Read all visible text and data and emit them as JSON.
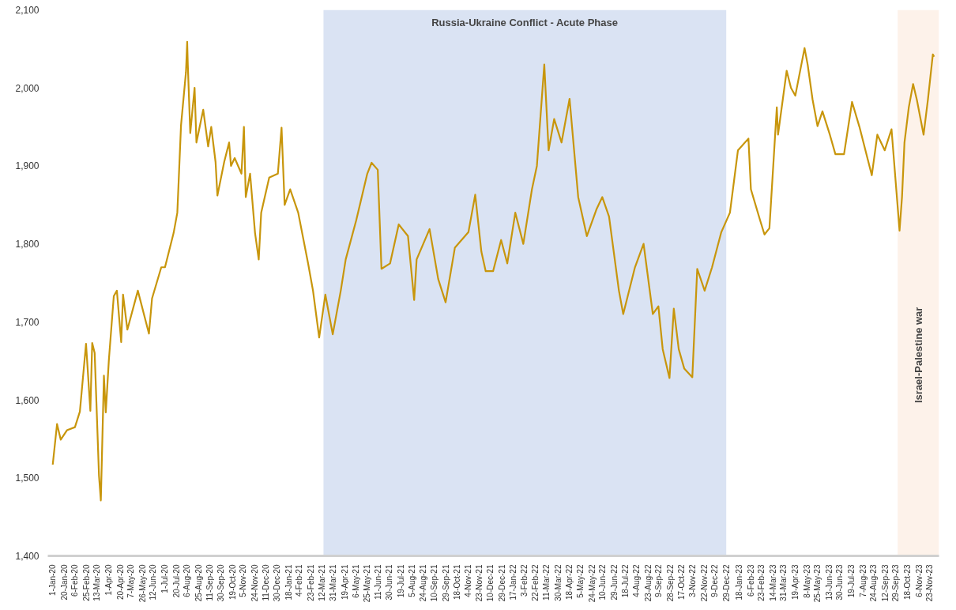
{
  "chart_data": {
    "type": "line",
    "x": [
      "2020-01-01",
      "2020-01-08",
      "2020-01-14",
      "2020-01-24",
      "2020-02-06",
      "2020-02-14",
      "2020-02-24",
      "2020-03-02",
      "2020-03-05",
      "2020-03-09",
      "2020-03-16",
      "2020-03-19",
      "2020-03-24",
      "2020-03-27",
      "2020-04-01",
      "2020-04-09",
      "2020-04-14",
      "2020-04-21",
      "2020-04-24",
      "2020-05-01",
      "2020-05-18",
      "2020-06-05",
      "2020-06-10",
      "2020-06-25",
      "2020-07-01",
      "2020-07-15",
      "2020-07-21",
      "2020-07-27",
      "2020-08-04",
      "2020-08-06",
      "2020-08-07",
      "2020-08-11",
      "2020-08-18",
      "2020-08-21",
      "2020-09-01",
      "2020-09-09",
      "2020-09-14",
      "2020-09-21",
      "2020-09-24",
      "2020-10-05",
      "2020-10-13",
      "2020-10-16",
      "2020-10-22",
      "2020-11-02",
      "2020-11-06",
      "2020-11-09",
      "2020-11-16",
      "2020-11-24",
      "2020-11-30",
      "2020-12-04",
      "2020-12-17",
      "2020-12-31",
      "2021-01-06",
      "2021-01-11",
      "2021-01-20",
      "2021-02-02",
      "2021-02-18",
      "2021-02-26",
      "2021-03-08",
      "2021-03-18",
      "2021-03-30",
      "2021-04-12",
      "2021-04-20",
      "2021-05-07",
      "2021-05-25",
      "2021-06-01",
      "2021-06-11",
      "2021-06-17",
      "2021-07-01",
      "2021-07-15",
      "2021-07-30",
      "2021-08-09",
      "2021-08-13",
      "2021-09-03",
      "2021-09-17",
      "2021-09-29",
      "2021-10-14",
      "2021-11-05",
      "2021-11-16",
      "2021-11-26",
      "2021-12-03",
      "2021-12-15",
      "2021-12-28",
      "2022-01-07",
      "2022-01-20",
      "2022-02-02",
      "2022-02-16",
      "2022-02-24",
      "2022-03-08",
      "2022-03-15",
      "2022-03-24",
      "2022-04-05",
      "2022-04-18",
      "2022-05-02",
      "2022-05-16",
      "2022-06-01",
      "2022-06-10",
      "2022-06-21",
      "2022-07-07",
      "2022-07-14",
      "2022-08-02",
      "2022-08-16",
      "2022-08-31",
      "2022-09-09",
      "2022-09-16",
      "2022-09-27",
      "2022-10-04",
      "2022-10-12",
      "2022-10-21",
      "2022-11-03",
      "2022-11-11",
      "2022-11-23",
      "2022-12-05",
      "2022-12-20",
      "2023-01-03",
      "2023-01-16",
      "2023-02-02",
      "2023-02-06",
      "2023-02-21",
      "2023-02-28",
      "2023-03-08",
      "2023-03-15",
      "2023-03-20",
      "2023-03-22",
      "2023-04-05",
      "2023-04-12",
      "2023-04-19",
      "2023-05-04",
      "2023-05-09",
      "2023-05-17",
      "2023-05-25",
      "2023-06-02",
      "2023-06-14",
      "2023-06-23",
      "2023-07-07",
      "2023-07-20",
      "2023-08-01",
      "2023-08-21",
      "2023-08-30",
      "2023-09-11",
      "2023-09-22",
      "2023-10-05",
      "2023-10-09",
      "2023-10-13",
      "2023-10-20",
      "2023-10-27",
      "2023-11-02",
      "2023-11-13",
      "2023-11-20",
      "2023-11-28",
      "2023-11-30"
    ],
    "series": [
      {
        "color": "#c8960c",
        "values": [
          1517,
          1569,
          1549,
          1561,
          1565,
          1585,
          1672,
          1586,
          1673,
          1660,
          1503,
          1471,
          1631,
          1584,
          1651,
          1733,
          1740,
          1674,
          1735,
          1690,
          1740,
          1685,
          1730,
          1770,
          1770,
          1814,
          1840,
          1952,
          2020,
          2059,
          2030,
          1942,
          2000,
          1930,
          1972,
          1925,
          1950,
          1905,
          1862,
          1905,
          1930,
          1900,
          1910,
          1890,
          1950,
          1860,
          1890,
          1814,
          1780,
          1840,
          1885,
          1890,
          1949,
          1850,
          1870,
          1840,
          1775,
          1740,
          1680,
          1735,
          1684,
          1740,
          1780,
          1830,
          1890,
          1904,
          1895,
          1768,
          1775,
          1825,
          1810,
          1728,
          1780,
          1819,
          1755,
          1725,
          1795,
          1815,
          1863,
          1790,
          1765,
          1765,
          1805,
          1775,
          1840,
          1800,
          1870,
          1900,
          2030,
          1920,
          1960,
          1930,
          1986,
          1860,
          1810,
          1845,
          1860,
          1835,
          1740,
          1710,
          1770,
          1800,
          1710,
          1720,
          1665,
          1628,
          1717,
          1665,
          1640,
          1629,
          1768,
          1740,
          1770,
          1815,
          1840,
          1920,
          1935,
          1870,
          1830,
          1812,
          1820,
          1910,
          1975,
          1940,
          2022,
          2000,
          1990,
          2051,
          2030,
          1985,
          1951,
          1970,
          1940,
          1915,
          1915,
          1982,
          1950,
          1888,
          1940,
          1920,
          1947,
          1817,
          1860,
          1930,
          1975,
          2005,
          1985,
          1940,
          1985,
          2043,
          2040
        ]
      }
    ],
    "xlim": [
      "2019-12-24",
      "2023-12-08"
    ],
    "ylim": [
      1400,
      2100
    ],
    "yticks": [
      {
        "value": 1400,
        "label": "1,400"
      },
      {
        "value": 1500,
        "label": "1,500"
      },
      {
        "value": 1600,
        "label": "1,600"
      },
      {
        "value": 1700,
        "label": "1,700"
      },
      {
        "value": 1800,
        "label": "1,800"
      },
      {
        "value": 1900,
        "label": "1,900"
      },
      {
        "value": 2000,
        "label": "2,000"
      },
      {
        "value": 2100,
        "label": "2,100"
      }
    ],
    "xticks": [
      {
        "value": "2020-01-01",
        "label": "1-Jan-20"
      },
      {
        "value": "2020-01-20",
        "label": "20-Jan-20"
      },
      {
        "value": "2020-02-06",
        "label": "6-Feb-20"
      },
      {
        "value": "2020-02-25",
        "label": "25-Feb-20"
      },
      {
        "value": "2020-03-13",
        "label": "13-Mar-20"
      },
      {
        "value": "2020-04-01",
        "label": "1-Apr-20"
      },
      {
        "value": "2020-04-20",
        "label": "20-Apr-20"
      },
      {
        "value": "2020-05-07",
        "label": "7-May-20"
      },
      {
        "value": "2020-05-26",
        "label": "26-May-20"
      },
      {
        "value": "2020-06-12",
        "label": "12-Jun-20"
      },
      {
        "value": "2020-07-01",
        "label": "1-Jul-20"
      },
      {
        "value": "2020-07-20",
        "label": "20-Jul-20"
      },
      {
        "value": "2020-08-06",
        "label": "6-Aug-20"
      },
      {
        "value": "2020-08-25",
        "label": "25-Aug-20"
      },
      {
        "value": "2020-09-11",
        "label": "11-Sep-20"
      },
      {
        "value": "2020-09-30",
        "label": "30-Sep-20"
      },
      {
        "value": "2020-10-19",
        "label": "19-Oct-20"
      },
      {
        "value": "2020-11-05",
        "label": "5-Nov-20"
      },
      {
        "value": "2020-11-24",
        "label": "24-Nov-20"
      },
      {
        "value": "2020-12-11",
        "label": "11-Dec-20"
      },
      {
        "value": "2020-12-30",
        "label": "30-Dec-20"
      },
      {
        "value": "2021-01-18",
        "label": "18-Jan-21"
      },
      {
        "value": "2021-02-04",
        "label": "4-Feb-21"
      },
      {
        "value": "2021-02-23",
        "label": "23-Feb-21"
      },
      {
        "value": "2021-03-12",
        "label": "12-Mar-21"
      },
      {
        "value": "2021-03-31",
        "label": "31-Mar-21"
      },
      {
        "value": "2021-04-19",
        "label": "19-Apr-21"
      },
      {
        "value": "2021-05-06",
        "label": "6-May-21"
      },
      {
        "value": "2021-05-25",
        "label": "25-May-21"
      },
      {
        "value": "2021-06-11",
        "label": "11-Jun-21"
      },
      {
        "value": "2021-06-30",
        "label": "30-Jun-21"
      },
      {
        "value": "2021-07-19",
        "label": "19-Jul-21"
      },
      {
        "value": "2021-08-05",
        "label": "5-Aug-21"
      },
      {
        "value": "2021-08-24",
        "label": "24-Aug-21"
      },
      {
        "value": "2021-09-10",
        "label": "10-Sep-21"
      },
      {
        "value": "2021-09-29",
        "label": "29-Sep-21"
      },
      {
        "value": "2021-10-18",
        "label": "18-Oct-21"
      },
      {
        "value": "2021-11-04",
        "label": "4-Nov-21"
      },
      {
        "value": "2021-11-23",
        "label": "23-Nov-21"
      },
      {
        "value": "2021-12-10",
        "label": "10-Dec-21"
      },
      {
        "value": "2021-12-29",
        "label": "29-Dec-21"
      },
      {
        "value": "2022-01-17",
        "label": "17-Jan-22"
      },
      {
        "value": "2022-02-03",
        "label": "3-Feb-22"
      },
      {
        "value": "2022-02-22",
        "label": "22-Feb-22"
      },
      {
        "value": "2022-03-11",
        "label": "11-Mar-22"
      },
      {
        "value": "2022-03-30",
        "label": "30-Mar-22"
      },
      {
        "value": "2022-04-18",
        "label": "18-Apr-22"
      },
      {
        "value": "2022-05-05",
        "label": "5-May-22"
      },
      {
        "value": "2022-05-24",
        "label": "24-May-22"
      },
      {
        "value": "2022-06-10",
        "label": "10-Jun-22"
      },
      {
        "value": "2022-06-29",
        "label": "29-Jun-22"
      },
      {
        "value": "2022-07-18",
        "label": "18-Jul-22"
      },
      {
        "value": "2022-08-04",
        "label": "4-Aug-22"
      },
      {
        "value": "2022-08-23",
        "label": "23-Aug-22"
      },
      {
        "value": "2022-09-09",
        "label": "9-Sep-22"
      },
      {
        "value": "2022-09-28",
        "label": "28-Sep-22"
      },
      {
        "value": "2022-10-17",
        "label": "17-Oct-22"
      },
      {
        "value": "2022-11-03",
        "label": "3-Nov-22"
      },
      {
        "value": "2022-11-22",
        "label": "22-Nov-22"
      },
      {
        "value": "2022-12-09",
        "label": "9-Dec-22"
      },
      {
        "value": "2022-12-29",
        "label": "29-Dec-22"
      },
      {
        "value": "2023-01-18",
        "label": "18-Jan-23"
      },
      {
        "value": "2023-02-06",
        "label": "6-Feb-23"
      },
      {
        "value": "2023-02-23",
        "label": "23-Feb-23"
      },
      {
        "value": "2023-03-14",
        "label": "14-Mar-23"
      },
      {
        "value": "2023-03-31",
        "label": "31-Mar-23"
      },
      {
        "value": "2023-04-19",
        "label": "19-Apr-23"
      },
      {
        "value": "2023-05-08",
        "label": "8-May-23"
      },
      {
        "value": "2023-05-25",
        "label": "25-May-23"
      },
      {
        "value": "2023-06-13",
        "label": "13-Jun-23"
      },
      {
        "value": "2023-06-30",
        "label": "30-Jun-23"
      },
      {
        "value": "2023-07-19",
        "label": "19-Jul-23"
      },
      {
        "value": "2023-08-07",
        "label": "7-Aug-23"
      },
      {
        "value": "2023-08-24",
        "label": "24-Aug-23"
      },
      {
        "value": "2023-09-12",
        "label": "12-Sep-23"
      },
      {
        "value": "2023-09-29",
        "label": "29-Sep-23"
      },
      {
        "value": "2023-10-18",
        "label": "18-Oct-23"
      },
      {
        "value": "2023-11-06",
        "label": "6-Nov-23"
      },
      {
        "value": "2023-11-23",
        "label": "23-Nov-23"
      }
    ],
    "bands": [
      {
        "axis": "x",
        "from": "2021-03-15",
        "to": "2022-12-28",
        "label": "Russia-Ukraine Conflict - Acute Phase",
        "color": "#dae3f3"
      },
      {
        "axis": "x",
        "from": "2023-10-02",
        "to": "2023-12-08",
        "label": "Israel-Palestine war",
        "color": "#fdf2ea"
      }
    ],
    "grid": false,
    "line_style": "solid"
  }
}
